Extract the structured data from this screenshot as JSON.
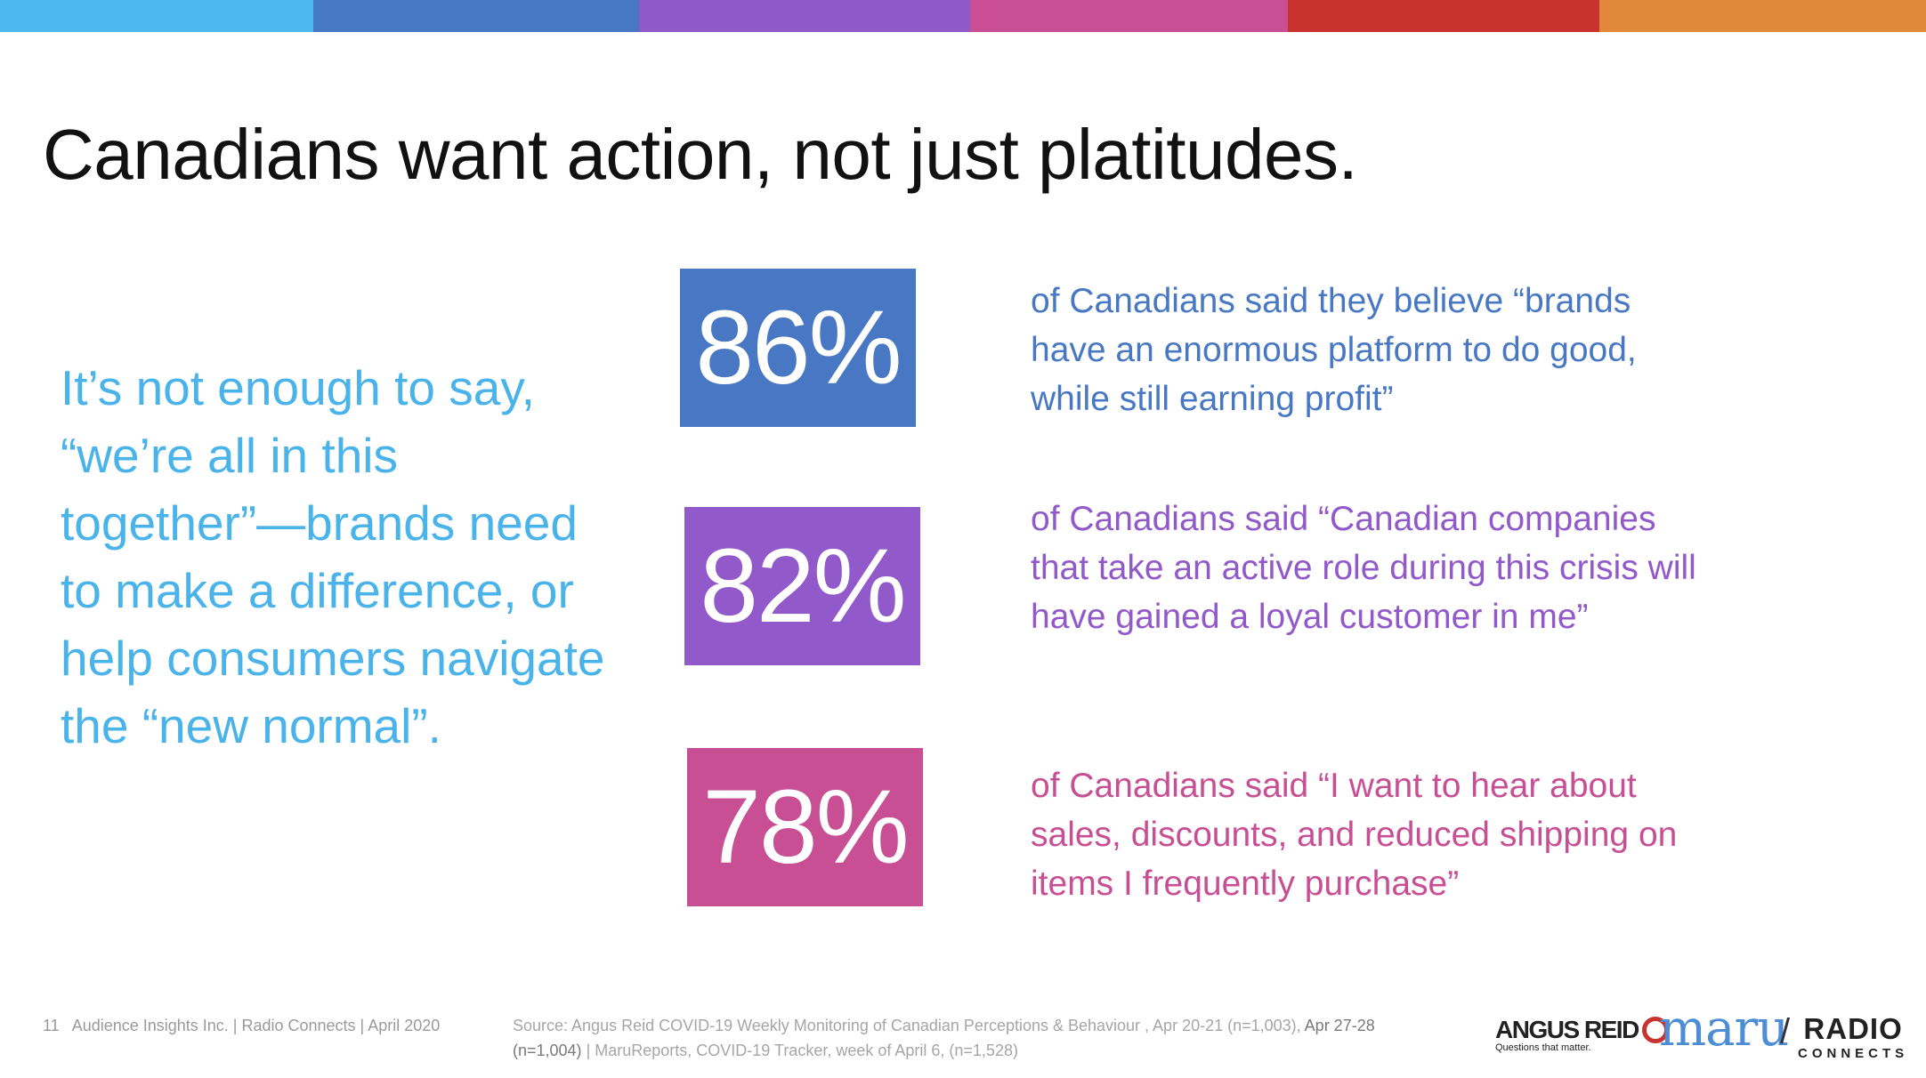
{
  "top_bar": {
    "colors": [
      "#4db8ee",
      "#4778c2",
      "#9059c9",
      "#c94e94",
      "#c8332f",
      "#e2883a"
    ]
  },
  "title": "Canadians want action, not just platitudes.",
  "lead_text": "It’s not enough to say, “we’re all in this together”—brands need to make a difference, or help consumers navigate the “new normal”.",
  "stats": [
    {
      "value": "86%",
      "color": "#4878c3",
      "text": "of Canadians said they believe “brands have an enormous platform to do good, while still earning profit”"
    },
    {
      "value": "82%",
      "color": "#9159c9",
      "text": "of Canadians said “Canadian companies that take an active role during this crisis will have gained a loyal customer in me”"
    },
    {
      "value": "78%",
      "color": "#c84f94",
      "text": "of Canadians said “I want to hear about sales, discounts, and reduced shipping on items I frequently purchase”"
    }
  ],
  "footer": {
    "page_number": "11",
    "credit": "Audience Insights Inc. | Radio Connects | April 2020",
    "source_part1": "Source: Angus Reid COVID-19 Weekly Monitoring of Canadian Perceptions & Behaviour , Apr 20-21 (n=1,003),",
    "source_part2": "Apr 27-28 (n=1,004)",
    "source_part3": "| MaruReports, COVID-19 Tracker, week of April 6, (n=1,528)"
  },
  "logos": {
    "angus_reid_text": "ANGUS REID",
    "angus_reid_tagline": "Questions that matter.",
    "maru_text": "maru",
    "slash": "/",
    "radio_text": "RADIO",
    "connects_text": "CONNECTS"
  }
}
